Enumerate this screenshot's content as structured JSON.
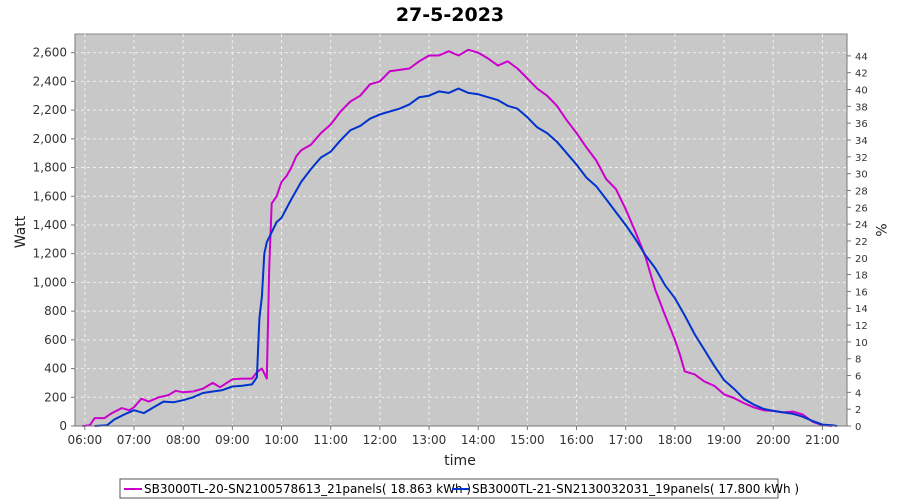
{
  "chart_data": {
    "type": "line",
    "title": "27-5-2023",
    "xlabel": "time",
    "ylabel": "Watt",
    "y2label": "%",
    "grid": true,
    "legend_position": "bottom",
    "background_color": "#c8c8c8",
    "grid_color": "#f0f0f0",
    "xlim": [
      5.8,
      21.5
    ],
    "ylim": [
      0,
      2730
    ],
    "y2lim": [
      0,
      46.6
    ],
    "x_ticks": [
      {
        "v": 6,
        "label": "06:00"
      },
      {
        "v": 7,
        "label": "07:00"
      },
      {
        "v": 8,
        "label": "08:00"
      },
      {
        "v": 9,
        "label": "09:00"
      },
      {
        "v": 10,
        "label": "10:00"
      },
      {
        "v": 11,
        "label": "11:00"
      },
      {
        "v": 12,
        "label": "12:00"
      },
      {
        "v": 13,
        "label": "13:00"
      },
      {
        "v": 14,
        "label": "14:00"
      },
      {
        "v": 15,
        "label": "15:00"
      },
      {
        "v": 16,
        "label": "16:00"
      },
      {
        "v": 17,
        "label": "17:00"
      },
      {
        "v": 18,
        "label": "18:00"
      },
      {
        "v": 19,
        "label": "19:00"
      },
      {
        "v": 20,
        "label": "20:00"
      },
      {
        "v": 21,
        "label": "21:00"
      }
    ],
    "y_ticks": [
      {
        "v": 0,
        "label": "0"
      },
      {
        "v": 200,
        "label": "200"
      },
      {
        "v": 400,
        "label": "400"
      },
      {
        "v": 600,
        "label": "600"
      },
      {
        "v": 800,
        "label": "800"
      },
      {
        "v": 1000,
        "label": "1,000"
      },
      {
        "v": 1200,
        "label": "1,200"
      },
      {
        "v": 1400,
        "label": "1,400"
      },
      {
        "v": 1600,
        "label": "1,600"
      },
      {
        "v": 1800,
        "label": "1,800"
      },
      {
        "v": 2000,
        "label": "2,000"
      },
      {
        "v": 2200,
        "label": "2,200"
      },
      {
        "v": 2400,
        "label": "2,400"
      },
      {
        "v": 2600,
        "label": "2,600"
      }
    ],
    "y2_ticks": [
      {
        "v": 0,
        "label": "0"
      },
      {
        "v": 2,
        "label": "2"
      },
      {
        "v": 4,
        "label": "4"
      },
      {
        "v": 6,
        "label": "6"
      },
      {
        "v": 8,
        "label": "8"
      },
      {
        "v": 10,
        "label": "10"
      },
      {
        "v": 12,
        "label": "12"
      },
      {
        "v": 14,
        "label": "14"
      },
      {
        "v": 16,
        "label": "16"
      },
      {
        "v": 18,
        "label": "18"
      },
      {
        "v": 20,
        "label": "20"
      },
      {
        "v": 22,
        "label": "22"
      },
      {
        "v": 24,
        "label": "24"
      },
      {
        "v": 26,
        "label": "26"
      },
      {
        "v": 28,
        "label": "28"
      },
      {
        "v": 30,
        "label": "30"
      },
      {
        "v": 32,
        "label": "32"
      },
      {
        "v": 34,
        "label": "34"
      },
      {
        "v": 36,
        "label": "36"
      },
      {
        "v": 38,
        "label": "38"
      },
      {
        "v": 40,
        "label": "40"
      },
      {
        "v": 42,
        "label": "42"
      },
      {
        "v": 44,
        "label": "44"
      }
    ],
    "series": [
      {
        "name": "SB3000TL-20-SN2100578613_21panels( 18.863 kWh )",
        "color": "#cc00cc",
        "points": [
          [
            5.95,
            0
          ],
          [
            6.1,
            5
          ],
          [
            6.2,
            55
          ],
          [
            6.4,
            55
          ],
          [
            6.55,
            90
          ],
          [
            6.75,
            125
          ],
          [
            6.9,
            110
          ],
          [
            7.0,
            130
          ],
          [
            7.15,
            190
          ],
          [
            7.3,
            170
          ],
          [
            7.5,
            200
          ],
          [
            7.7,
            215
          ],
          [
            7.85,
            245
          ],
          [
            8.0,
            235
          ],
          [
            8.2,
            240
          ],
          [
            8.4,
            260
          ],
          [
            8.6,
            300
          ],
          [
            8.75,
            270
          ],
          [
            9.0,
            325
          ],
          [
            9.2,
            330
          ],
          [
            9.4,
            330
          ],
          [
            9.5,
            375
          ],
          [
            9.6,
            400
          ],
          [
            9.7,
            330
          ],
          [
            9.75,
            1100
          ],
          [
            9.8,
            1550
          ],
          [
            9.9,
            1600
          ],
          [
            10.0,
            1700
          ],
          [
            10.1,
            1740
          ],
          [
            10.2,
            1800
          ],
          [
            10.3,
            1880
          ],
          [
            10.4,
            1920
          ],
          [
            10.6,
            1960
          ],
          [
            10.8,
            2040
          ],
          [
            11.0,
            2100
          ],
          [
            11.2,
            2190
          ],
          [
            11.4,
            2260
          ],
          [
            11.6,
            2300
          ],
          [
            11.8,
            2380
          ],
          [
            12.0,
            2400
          ],
          [
            12.2,
            2470
          ],
          [
            12.4,
            2480
          ],
          [
            12.6,
            2490
          ],
          [
            12.8,
            2540
          ],
          [
            13.0,
            2580
          ],
          [
            13.2,
            2580
          ],
          [
            13.4,
            2610
          ],
          [
            13.6,
            2580
          ],
          [
            13.8,
            2620
          ],
          [
            14.0,
            2600
          ],
          [
            14.2,
            2560
          ],
          [
            14.4,
            2510
          ],
          [
            14.6,
            2540
          ],
          [
            14.8,
            2490
          ],
          [
            15.0,
            2420
          ],
          [
            15.2,
            2350
          ],
          [
            15.4,
            2300
          ],
          [
            15.6,
            2230
          ],
          [
            15.8,
            2130
          ],
          [
            16.0,
            2040
          ],
          [
            16.2,
            1940
          ],
          [
            16.4,
            1850
          ],
          [
            16.6,
            1720
          ],
          [
            16.8,
            1650
          ],
          [
            17.0,
            1510
          ],
          [
            17.2,
            1350
          ],
          [
            17.4,
            1180
          ],
          [
            17.6,
            950
          ],
          [
            17.8,
            770
          ],
          [
            18.0,
            600
          ],
          [
            18.1,
            500
          ],
          [
            18.2,
            380
          ],
          [
            18.4,
            360
          ],
          [
            18.6,
            310
          ],
          [
            18.8,
            280
          ],
          [
            19.0,
            220
          ],
          [
            19.2,
            195
          ],
          [
            19.4,
            160
          ],
          [
            19.6,
            130
          ],
          [
            19.8,
            110
          ],
          [
            20.0,
            105
          ],
          [
            20.2,
            95
          ],
          [
            20.4,
            100
          ],
          [
            20.6,
            80
          ],
          [
            20.8,
            30
          ],
          [
            21.0,
            5
          ],
          [
            21.2,
            0
          ]
        ]
      },
      {
        "name": "SB3000TL-21-SN2130032031_19panels( 17.800 kWh )",
        "color": "#0033cc",
        "points": [
          [
            6.2,
            0
          ],
          [
            6.45,
            5
          ],
          [
            6.6,
            45
          ],
          [
            6.8,
            80
          ],
          [
            7.0,
            110
          ],
          [
            7.2,
            90
          ],
          [
            7.4,
            130
          ],
          [
            7.6,
            170
          ],
          [
            7.8,
            165
          ],
          [
            8.0,
            180
          ],
          [
            8.2,
            200
          ],
          [
            8.4,
            230
          ],
          [
            8.6,
            240
          ],
          [
            8.8,
            250
          ],
          [
            9.0,
            275
          ],
          [
            9.2,
            280
          ],
          [
            9.4,
            290
          ],
          [
            9.5,
            340
          ],
          [
            9.55,
            750
          ],
          [
            9.6,
            900
          ],
          [
            9.65,
            1200
          ],
          [
            9.7,
            1280
          ],
          [
            9.8,
            1350
          ],
          [
            9.9,
            1420
          ],
          [
            10.0,
            1450
          ],
          [
            10.2,
            1580
          ],
          [
            10.4,
            1700
          ],
          [
            10.6,
            1790
          ],
          [
            10.8,
            1870
          ],
          [
            11.0,
            1910
          ],
          [
            11.2,
            1990
          ],
          [
            11.4,
            2060
          ],
          [
            11.6,
            2090
          ],
          [
            11.8,
            2140
          ],
          [
            12.0,
            2170
          ],
          [
            12.2,
            2190
          ],
          [
            12.4,
            2210
          ],
          [
            12.6,
            2240
          ],
          [
            12.8,
            2290
          ],
          [
            13.0,
            2300
          ],
          [
            13.2,
            2330
          ],
          [
            13.4,
            2320
          ],
          [
            13.6,
            2350
          ],
          [
            13.8,
            2320
          ],
          [
            14.0,
            2310
          ],
          [
            14.2,
            2290
          ],
          [
            14.4,
            2270
          ],
          [
            14.6,
            2230
          ],
          [
            14.8,
            2210
          ],
          [
            15.0,
            2150
          ],
          [
            15.2,
            2080
          ],
          [
            15.4,
            2040
          ],
          [
            15.6,
            1980
          ],
          [
            15.8,
            1900
          ],
          [
            16.0,
            1820
          ],
          [
            16.2,
            1730
          ],
          [
            16.4,
            1670
          ],
          [
            16.6,
            1580
          ],
          [
            16.8,
            1490
          ],
          [
            17.0,
            1400
          ],
          [
            17.2,
            1300
          ],
          [
            17.4,
            1190
          ],
          [
            17.6,
            1100
          ],
          [
            17.8,
            980
          ],
          [
            18.0,
            890
          ],
          [
            18.2,
            770
          ],
          [
            18.4,
            640
          ],
          [
            18.6,
            530
          ],
          [
            18.8,
            420
          ],
          [
            19.0,
            320
          ],
          [
            19.2,
            260
          ],
          [
            19.4,
            190
          ],
          [
            19.6,
            150
          ],
          [
            19.8,
            120
          ],
          [
            20.0,
            105
          ],
          [
            20.2,
            95
          ],
          [
            20.4,
            85
          ],
          [
            20.6,
            65
          ],
          [
            20.8,
            35
          ],
          [
            21.0,
            10
          ],
          [
            21.2,
            5
          ],
          [
            21.3,
            0
          ]
        ]
      }
    ]
  }
}
